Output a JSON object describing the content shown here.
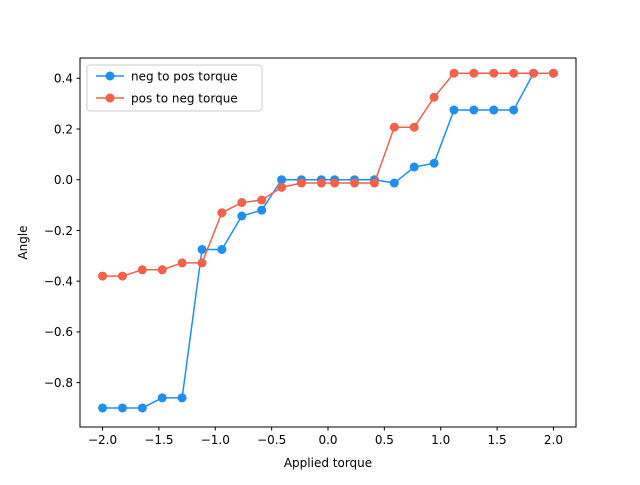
{
  "chart_data": {
    "type": "line",
    "title": "",
    "xlabel": "Applied torque",
    "ylabel": "Angle",
    "xlim": [
      -2.2,
      2.2
    ],
    "ylim": [
      -0.975,
      0.48
    ],
    "xticks": [
      -2.0,
      -1.5,
      -1.0,
      -0.5,
      0.0,
      0.5,
      1.0,
      1.5,
      2.0
    ],
    "xtick_labels": [
      "−2.0",
      "−1.5",
      "−1.0",
      "−0.5",
      "0.0",
      "0.5",
      "1.0",
      "1.5",
      "2.0"
    ],
    "yticks": [
      -0.8,
      -0.6,
      -0.4,
      -0.2,
      0.0,
      0.2,
      0.4
    ],
    "ytick_labels": [
      "−0.8",
      "−0.6",
      "−0.4",
      "−0.2",
      "0.0",
      "0.2",
      "0.4"
    ],
    "grid": false,
    "legend_position": "upper-left",
    "x": [
      -2.0,
      -1.8235,
      -1.6471,
      -1.4706,
      -1.2941,
      -1.1176,
      -0.9412,
      -0.7647,
      -0.5882,
      -0.4118,
      -0.2353,
      -0.0588,
      0.0588,
      0.2353,
      0.4118,
      0.5882,
      0.7647,
      0.9412,
      1.1176,
      1.2941,
      1.4706,
      1.6471,
      1.8235,
      2.0
    ],
    "series": [
      {
        "name": "neg to pos torque",
        "color": "#1f8fef",
        "values": [
          -0.9,
          -0.9,
          -0.9,
          -0.86,
          -0.86,
          -0.275,
          -0.275,
          -0.143,
          -0.12,
          0.0,
          0.0,
          0.0,
          0.0,
          0.0,
          0.0,
          -0.013,
          0.05,
          0.065,
          0.275,
          0.275,
          0.275,
          0.275,
          0.42,
          0.42
        ]
      },
      {
        "name": "pos to neg torque",
        "color": "#f4604a",
        "values": [
          -0.38,
          -0.38,
          -0.355,
          -0.355,
          -0.328,
          -0.328,
          -0.13,
          -0.09,
          -0.08,
          -0.03,
          -0.013,
          -0.013,
          -0.013,
          -0.013,
          -0.013,
          0.207,
          0.207,
          0.325,
          0.42,
          0.42,
          0.42,
          0.42,
          0.42,
          0.42
        ]
      }
    ]
  }
}
